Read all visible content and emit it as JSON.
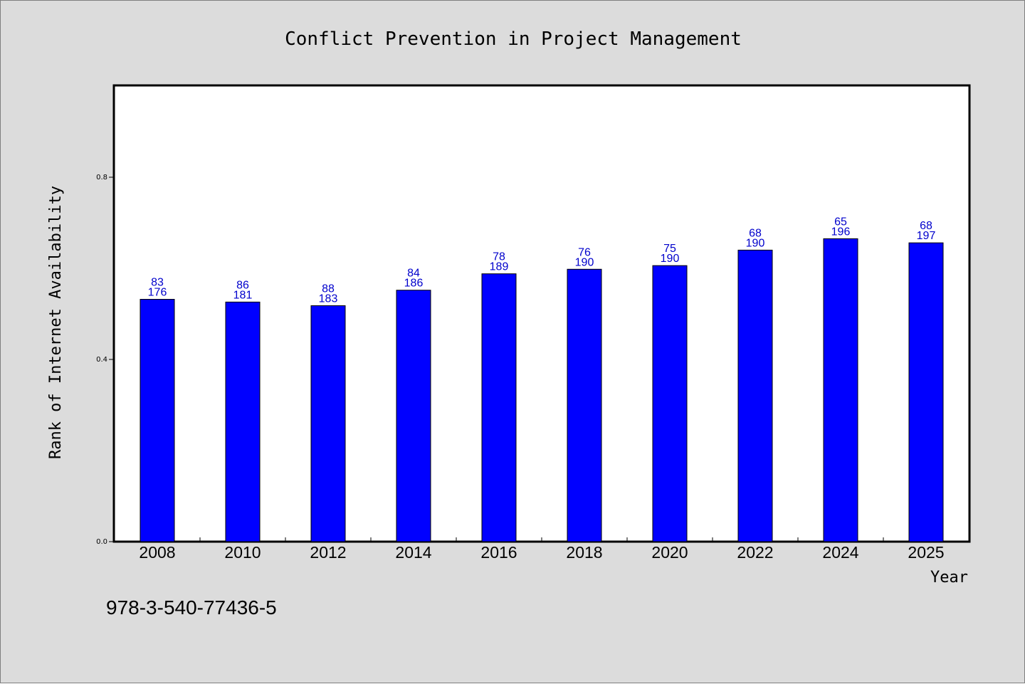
{
  "chart_data": {
    "type": "bar",
    "title": "Conflict Prevention in Project Management",
    "xlabel": "Year",
    "ylabel": "Rank of Internet Availability",
    "categories": [
      "2008",
      "2010",
      "2012",
      "2014",
      "2016",
      "2018",
      "2020",
      "2022",
      "2024",
      "2025"
    ],
    "values": [
      0.532,
      0.526,
      0.518,
      0.552,
      0.588,
      0.598,
      0.606,
      0.64,
      0.665,
      0.656
    ],
    "data_labels_top": [
      "83",
      "86",
      "88",
      "84",
      "78",
      "76",
      "75",
      "68",
      "65",
      "68"
    ],
    "data_labels_bottom": [
      "176",
      "181",
      "183",
      "186",
      "189",
      "190",
      "190",
      "190",
      "196",
      "197"
    ],
    "ylim": [
      0,
      1.0
    ],
    "yticks": [
      0.0,
      0.4,
      0.8
    ],
    "ytick_labels": [
      "0.0",
      "0.4",
      "0.8"
    ],
    "grid": false,
    "legend": "none",
    "colors": {
      "bar": "#0000ff",
      "label": "#0000cc",
      "background": "#dcdcdc",
      "plot_area": "#ffffff"
    }
  },
  "footnote": "978-3-540-77436-5"
}
